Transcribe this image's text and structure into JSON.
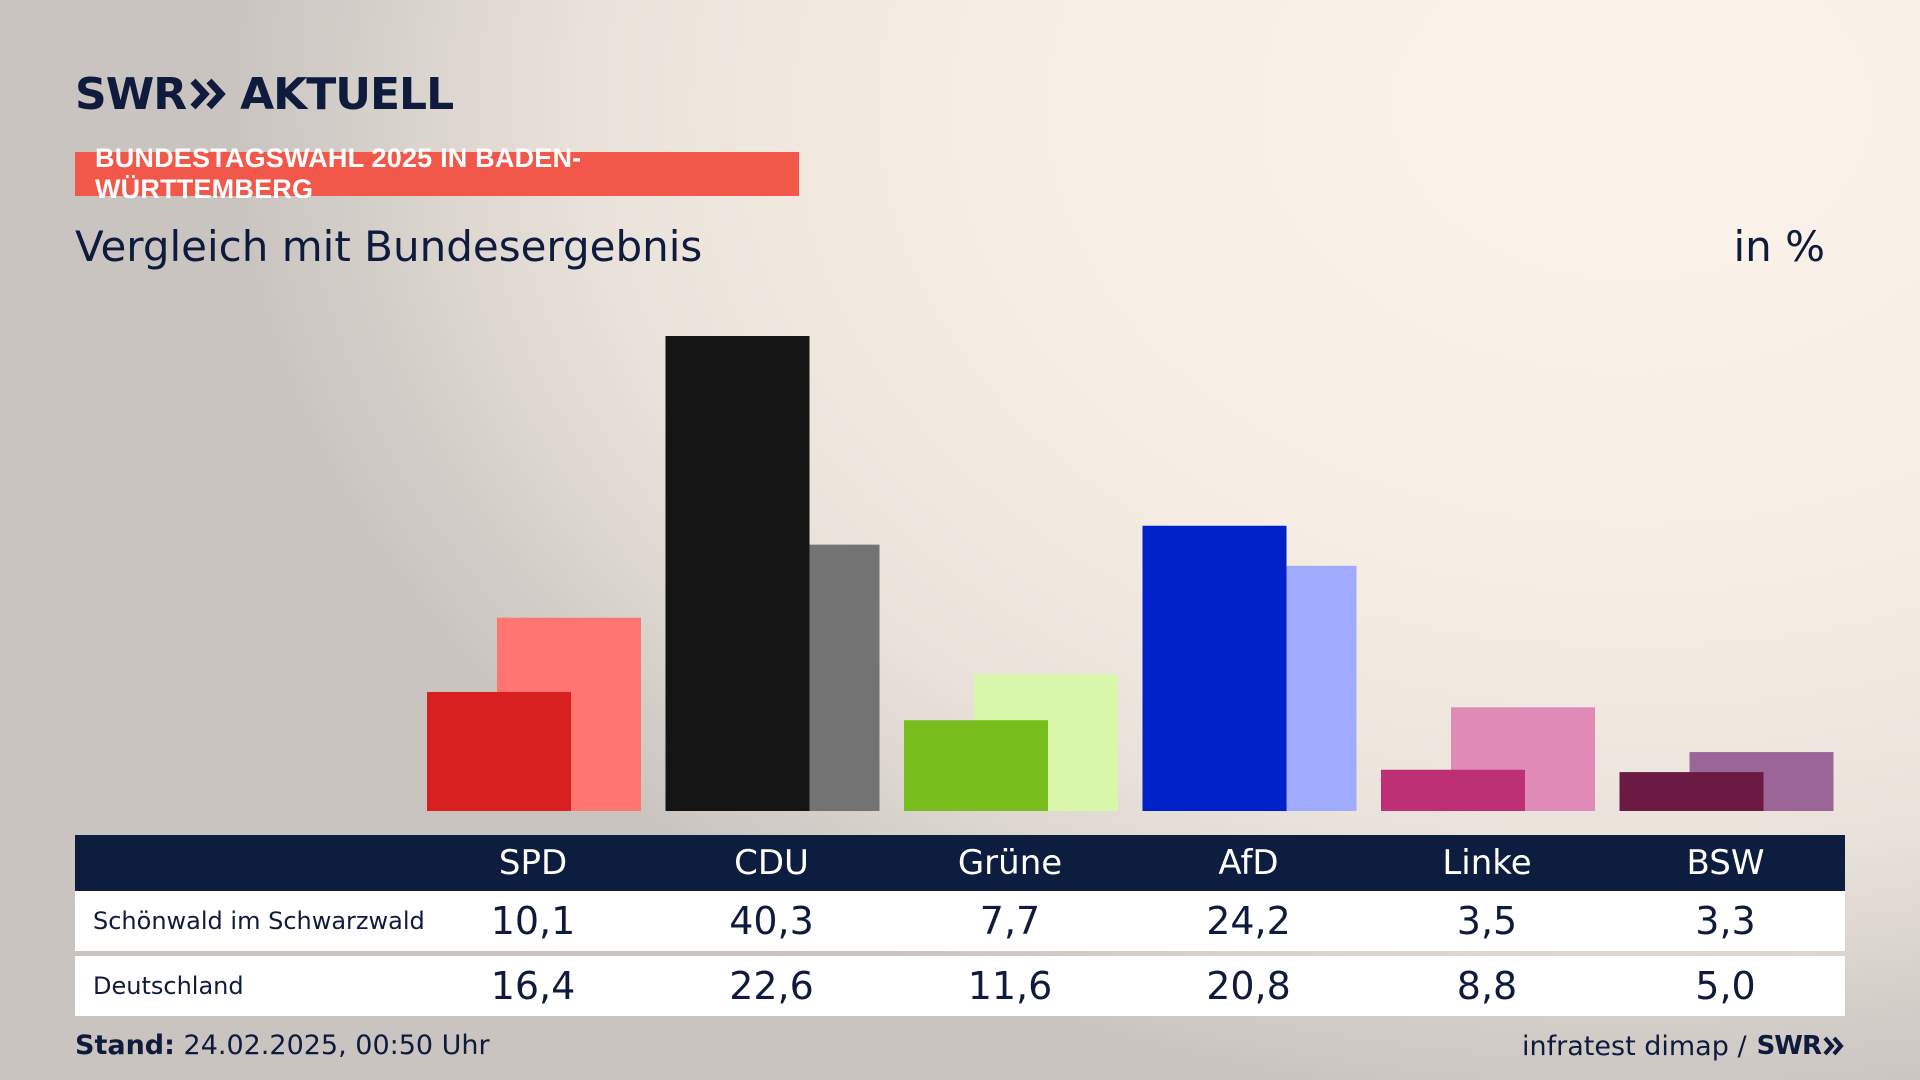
{
  "brand": {
    "swr": "SWR",
    "aktuell": "AKTUELL"
  },
  "tag": "BUNDESTAGSWAHL 2025 IN BADEN-WÜRTTEMBERG",
  "subtitle": "Vergleich mit Bundesergebnis",
  "unit": "in %",
  "colors": {
    "navy": "#0d1d3f",
    "tag": "#f2584a",
    "SPD": [
      "#d7201f",
      "#ff7670"
    ],
    "CDU": [
      "#141414",
      "#737373"
    ],
    "Grüne": [
      "#78be1c",
      "#d8f7aa"
    ],
    "AfD": [
      "#0020c8",
      "#a0aaff"
    ],
    "Linke": [
      "#be3075",
      "#e08ab7"
    ],
    "BSW": [
      "#6b1a44",
      "#9b6598"
    ]
  },
  "chart_data": {
    "type": "bar",
    "categories": [
      "SPD",
      "CDU",
      "Grüne",
      "AfD",
      "Linke",
      "BSW"
    ],
    "series": [
      {
        "name": "Schönwald im Schwarzwald",
        "values": [
          10.1,
          40.3,
          7.7,
          24.2,
          3.5,
          3.3
        ]
      },
      {
        "name": "Deutschland",
        "values": [
          16.4,
          22.6,
          11.6,
          20.8,
          8.8,
          5.0
        ]
      }
    ],
    "ylim": [
      0,
      40.3
    ]
  },
  "table": {
    "headers": [
      "SPD",
      "CDU",
      "Grüne",
      "AfD",
      "Linke",
      "BSW"
    ],
    "rows": [
      {
        "label": "Schönwald im Schwarzwald",
        "values": [
          "10,1",
          "40,3",
          "7,7",
          "24,2",
          "3,5",
          "3,3"
        ]
      },
      {
        "label": "Deutschland",
        "values": [
          "16,4",
          "22,6",
          "11,6",
          "20,8",
          "8,8",
          "5,0"
        ]
      }
    ]
  },
  "footer": {
    "stand_label": "Stand:",
    "stand_value": "24.02.2025, 00:50 Uhr",
    "source": "infratest dimap /",
    "source_brand": "SWR"
  }
}
